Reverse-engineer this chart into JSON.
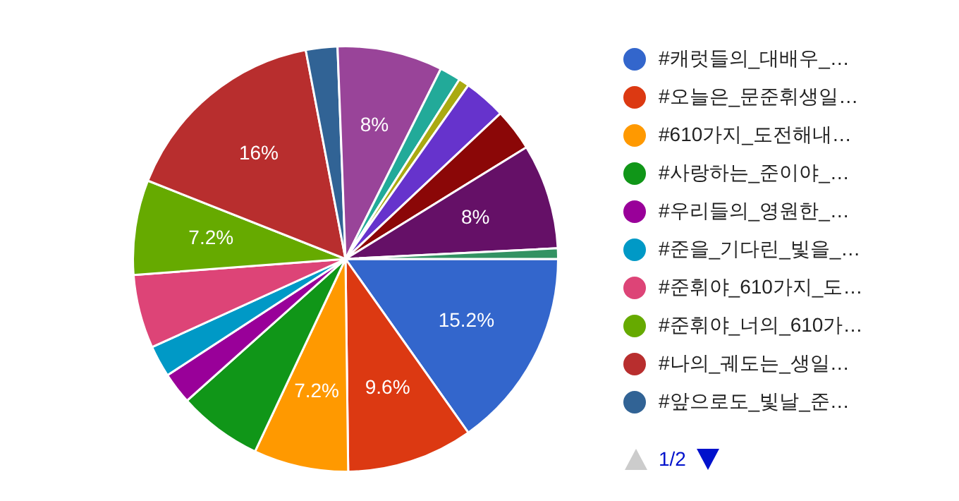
{
  "chart_data": {
    "type": "pie",
    "categories": [
      "#캐럿들의_대배우_…",
      "#오늘은_문준휘생일…",
      "#610가지_도전해내…",
      "#사랑하는_준이야_…",
      "#우리들의_영원한_…",
      "#준을_기다린_빛을_…",
      "#준휘야_610가지_도…",
      "#준휘야_너의_610가…",
      "#나의_궤도는_생일…",
      "#앞으로도_빛날_준…",
      null,
      null,
      null,
      null,
      null,
      null,
      null
    ],
    "values": [
      15.2,
      9.6,
      7.2,
      6.4,
      2.4,
      2.4,
      5.6,
      7.2,
      16,
      2.4,
      8,
      1.6,
      0.8,
      3.2,
      3.2,
      8,
      0.8
    ],
    "colors": [
      "#3366cc",
      "#dc3912",
      "#ff9900",
      "#109618",
      "#990099",
      "#0099c6",
      "#dd4477",
      "#66aa00",
      "#b82e2e",
      "#316395",
      "#994499",
      "#22aa99",
      "#aaaa11",
      "#6633cc",
      "#8b0707",
      "#651067",
      "#329262"
    ],
    "value_labels": [
      "15.2%",
      "9.6%",
      "7.2%",
      null,
      null,
      null,
      null,
      "7.2%",
      "16%",
      null,
      "8%",
      null,
      null,
      null,
      null,
      "8%",
      null
    ],
    "annotations": [
      "1/2"
    ],
    "legend": "right"
  }
}
